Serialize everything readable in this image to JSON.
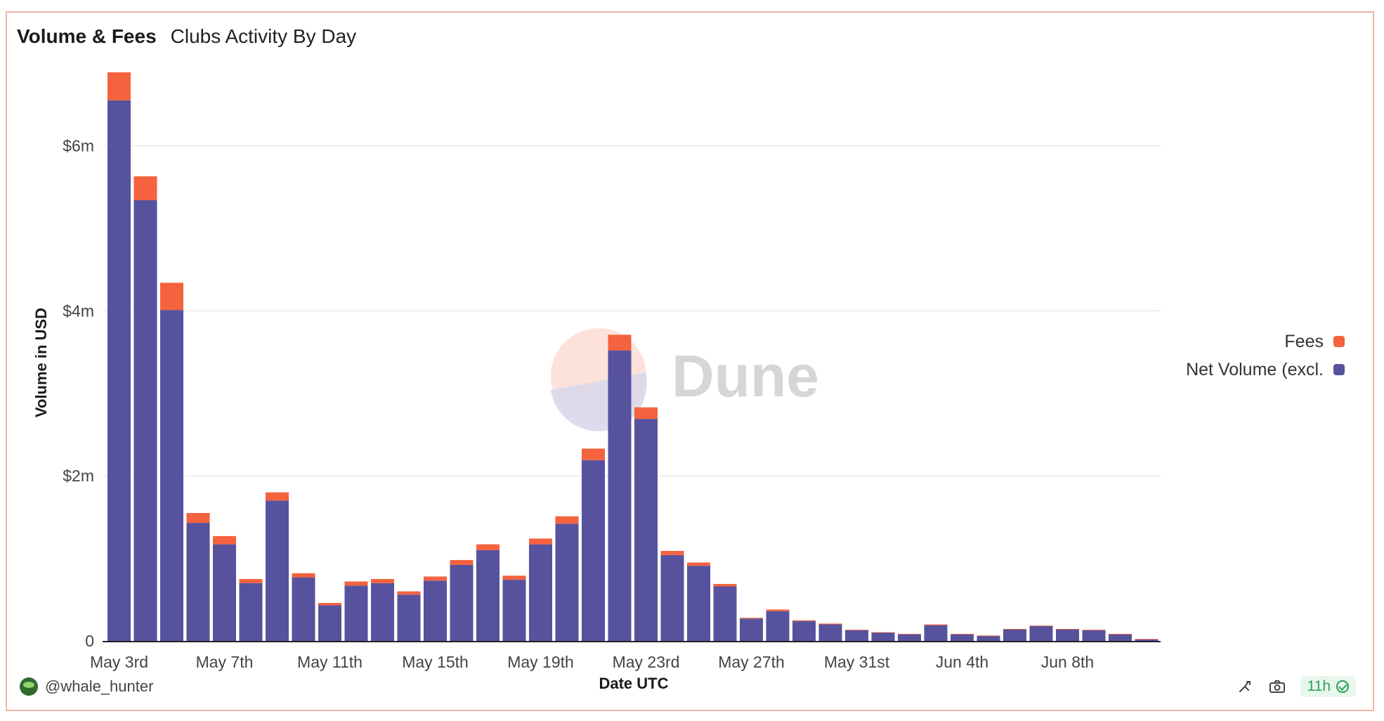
{
  "header": {
    "title": "Volume & Fees",
    "subtitle": "Clubs Activity By Day"
  },
  "footer": {
    "author": "@whale_hunter",
    "freshness": "11h"
  },
  "watermark": {
    "text": "Dune"
  },
  "colors": {
    "net_volume": "#56529e",
    "fees": "#f4623e",
    "grid": "#ececec",
    "axis": "#222222"
  },
  "chart_data": {
    "type": "bar",
    "stacked": true,
    "xlabel": "Date UTC",
    "ylabel": "Volume in USD",
    "ylim": [
      0,
      7000000
    ],
    "yticks": [
      {
        "value": 0,
        "label": "0"
      },
      {
        "value": 2000000,
        "label": "$2m"
      },
      {
        "value": 4000000,
        "label": "$4m"
      },
      {
        "value": 6000000,
        "label": "$6m"
      }
    ],
    "xtick_labels": [
      {
        "date": "2023-05-03",
        "label": "May 3rd"
      },
      {
        "date": "2023-05-07",
        "label": "May 7th"
      },
      {
        "date": "2023-05-11",
        "label": "May 11th"
      },
      {
        "date": "2023-05-15",
        "label": "May 15th"
      },
      {
        "date": "2023-05-19",
        "label": "May 19th"
      },
      {
        "date": "2023-05-23",
        "label": "May 23rd"
      },
      {
        "date": "2023-05-27",
        "label": "May 27th"
      },
      {
        "date": "2023-05-31",
        "label": "May 31st"
      },
      {
        "date": "2023-06-04",
        "label": "Jun 4th"
      },
      {
        "date": "2023-06-08",
        "label": "Jun 8th"
      }
    ],
    "categories": [
      "2023-05-03",
      "2023-05-04",
      "2023-05-05",
      "2023-05-06",
      "2023-05-07",
      "2023-05-08",
      "2023-05-09",
      "2023-05-10",
      "2023-05-11",
      "2023-05-12",
      "2023-05-13",
      "2023-05-14",
      "2023-05-15",
      "2023-05-16",
      "2023-05-17",
      "2023-05-18",
      "2023-05-19",
      "2023-05-20",
      "2023-05-21",
      "2023-05-22",
      "2023-05-23",
      "2023-05-24",
      "2023-05-25",
      "2023-05-26",
      "2023-05-27",
      "2023-05-28",
      "2023-05-29",
      "2023-05-30",
      "2023-05-31",
      "2023-06-01",
      "2023-06-02",
      "2023-06-03",
      "2023-06-04",
      "2023-06-05",
      "2023-06-06",
      "2023-06-07",
      "2023-06-08",
      "2023-06-09",
      "2023-06-10",
      "2023-06-11"
    ],
    "series": [
      {
        "name": "Net Volume (excl.",
        "color": "#56529e",
        "values": [
          6550000,
          5340000,
          4010000,
          1430000,
          1170000,
          700000,
          1700000,
          770000,
          430000,
          670000,
          700000,
          560000,
          730000,
          920000,
          1100000,
          740000,
          1170000,
          1420000,
          2190000,
          3520000,
          2690000,
          1040000,
          910000,
          660000,
          270000,
          360000,
          240000,
          200000,
          130000,
          100000,
          80000,
          190000,
          80000,
          60000,
          140000,
          180000,
          140000,
          130000,
          80000,
          20000
        ]
      },
      {
        "name": "Fees",
        "color": "#f4623e",
        "values": [
          340000,
          290000,
          330000,
          120000,
          100000,
          50000,
          100000,
          50000,
          30000,
          50000,
          50000,
          40000,
          50000,
          60000,
          70000,
          50000,
          70000,
          90000,
          140000,
          190000,
          140000,
          50000,
          40000,
          30000,
          10000,
          20000,
          10000,
          10000,
          5000,
          5000,
          5000,
          10000,
          5000,
          5000,
          5000,
          5000,
          5000,
          5000,
          5000,
          3000
        ]
      }
    ],
    "legend": "right",
    "legend_order": [
      "Fees",
      "Net Volume (excl."
    ],
    "grid": true
  }
}
